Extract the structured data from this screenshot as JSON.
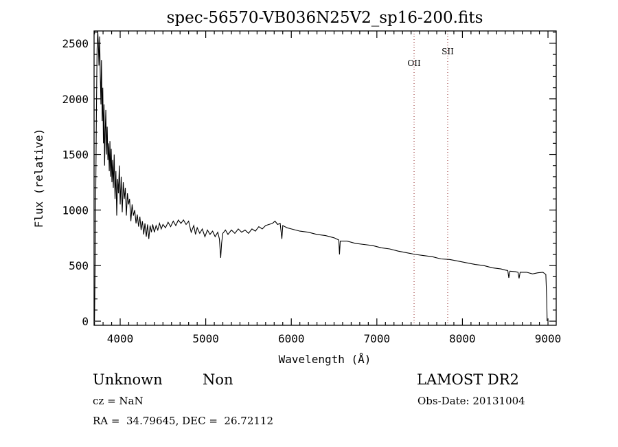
{
  "chart_data": {
    "type": "line",
    "title": "spec-56570-VB036N25V2_sp16-200.fits",
    "xlabel": "Wavelength (Å)",
    "ylabel": "Flux (relative)",
    "xlim": [
      3695,
      9096
    ],
    "ylim": [
      -37,
      2611
    ],
    "xticks": [
      4000,
      5000,
      6000,
      7000,
      8000,
      9000
    ],
    "yticks": [
      0,
      500,
      1000,
      1500,
      2000,
      2500
    ],
    "grid": false,
    "line_color": "#000000",
    "marker_color": "#8b1a1a",
    "lines": [
      {
        "name": "OII",
        "wavelength": 7435
      },
      {
        "name": "SII",
        "wavelength": 7828
      }
    ],
    "series": [
      {
        "name": "spectrum",
        "points": [
          [
            3700,
            0
          ],
          [
            3705,
            300
          ],
          [
            3712,
            900
          ],
          [
            3718,
            1500
          ],
          [
            3724,
            2000
          ],
          [
            3730,
            2450
          ],
          [
            3738,
            2611
          ],
          [
            3745,
            2500
          ],
          [
            3752,
            2300
          ],
          [
            3760,
            2560
          ],
          [
            3768,
            2200
          ],
          [
            3775,
            1950
          ],
          [
            3782,
            2350
          ],
          [
            3790,
            1800
          ],
          [
            3797,
            2100
          ],
          [
            3804,
            1600
          ],
          [
            3811,
            1950
          ],
          [
            3818,
            1400
          ],
          [
            3825,
            1700
          ],
          [
            3832,
            1900
          ],
          [
            3840,
            1500
          ],
          [
            3848,
            1750
          ],
          [
            3856,
            1450
          ],
          [
            3864,
            1600
          ],
          [
            3872,
            1350
          ],
          [
            3880,
            1620
          ],
          [
            3888,
            1300
          ],
          [
            3896,
            1550
          ],
          [
            3904,
            1250
          ],
          [
            3912,
            1450
          ],
          [
            3920,
            1200
          ],
          [
            3930,
            1500
          ],
          [
            3940,
            1100
          ],
          [
            3950,
            1350
          ],
          [
            3960,
            950
          ],
          [
            3970,
            1280
          ],
          [
            3980,
            1150
          ],
          [
            3990,
            1400
          ],
          [
            4000,
            1050
          ],
          [
            4012,
            1300
          ],
          [
            4024,
            980
          ],
          [
            4036,
            1250
          ],
          [
            4048,
            1100
          ],
          [
            4060,
            1200
          ],
          [
            4072,
            950
          ],
          [
            4085,
            1150
          ],
          [
            4098,
            1050
          ],
          [
            4110,
            1100
          ],
          [
            4125,
            900
          ],
          [
            4140,
            1050
          ],
          [
            4155,
            950
          ],
          [
            4170,
            1000
          ],
          [
            4185,
            880
          ],
          [
            4200,
            960
          ],
          [
            4215,
            850
          ],
          [
            4230,
            940
          ],
          [
            4245,
            820
          ],
          [
            4260,
            900
          ],
          [
            4275,
            780
          ],
          [
            4290,
            880
          ],
          [
            4305,
            760
          ],
          [
            4320,
            870
          ],
          [
            4335,
            740
          ],
          [
            4350,
            860
          ],
          [
            4365,
            800
          ],
          [
            4380,
            870
          ],
          [
            4400,
            800
          ],
          [
            4420,
            860
          ],
          [
            4440,
            820
          ],
          [
            4460,
            880
          ],
          [
            4480,
            830
          ],
          [
            4500,
            870
          ],
          [
            4530,
            840
          ],
          [
            4560,
            890
          ],
          [
            4590,
            850
          ],
          [
            4620,
            900
          ],
          [
            4650,
            860
          ],
          [
            4680,
            910
          ],
          [
            4710,
            880
          ],
          [
            4740,
            910
          ],
          [
            4770,
            870
          ],
          [
            4800,
            900
          ],
          [
            4830,
            800
          ],
          [
            4860,
            860
          ],
          [
            4880,
            780
          ],
          [
            4900,
            840
          ],
          [
            4930,
            790
          ],
          [
            4960,
            830
          ],
          [
            4990,
            760
          ],
          [
            5020,
            820
          ],
          [
            5050,
            780
          ],
          [
            5080,
            810
          ],
          [
            5110,
            760
          ],
          [
            5140,
            800
          ],
          [
            5160,
            740
          ],
          [
            5175,
            570
          ],
          [
            5185,
            700
          ],
          [
            5200,
            790
          ],
          [
            5230,
            820
          ],
          [
            5260,
            780
          ],
          [
            5300,
            820
          ],
          [
            5340,
            790
          ],
          [
            5380,
            830
          ],
          [
            5420,
            800
          ],
          [
            5460,
            820
          ],
          [
            5500,
            790
          ],
          [
            5540,
            830
          ],
          [
            5580,
            810
          ],
          [
            5620,
            850
          ],
          [
            5660,
            830
          ],
          [
            5700,
            860
          ],
          [
            5740,
            870
          ],
          [
            5780,
            880
          ],
          [
            5810,
            900
          ],
          [
            5840,
            870
          ],
          [
            5870,
            880
          ],
          [
            5890,
            740
          ],
          [
            5900,
            860
          ],
          [
            5950,
            840
          ],
          [
            6000,
            830
          ],
          [
            6100,
            810
          ],
          [
            6200,
            800
          ],
          [
            6300,
            780
          ],
          [
            6400,
            770
          ],
          [
            6500,
            750
          ],
          [
            6555,
            730
          ],
          [
            6563,
            600
          ],
          [
            6572,
            720
          ],
          [
            6650,
            720
          ],
          [
            6750,
            700
          ],
          [
            6850,
            690
          ],
          [
            6950,
            680
          ],
          [
            7050,
            660
          ],
          [
            7150,
            650
          ],
          [
            7250,
            630
          ],
          [
            7350,
            615
          ],
          [
            7450,
            600
          ],
          [
            7550,
            590
          ],
          [
            7650,
            580
          ],
          [
            7750,
            560
          ],
          [
            7850,
            555
          ],
          [
            7950,
            540
          ],
          [
            8050,
            525
          ],
          [
            8150,
            510
          ],
          [
            8250,
            500
          ],
          [
            8350,
            480
          ],
          [
            8450,
            470
          ],
          [
            8500,
            460
          ],
          [
            8530,
            455
          ],
          [
            8542,
            390
          ],
          [
            8555,
            450
          ],
          [
            8620,
            445
          ],
          [
            8650,
            440
          ],
          [
            8662,
            385
          ],
          [
            8675,
            440
          ],
          [
            8750,
            440
          ],
          [
            8820,
            425
          ],
          [
            8880,
            435
          ],
          [
            8940,
            440
          ],
          [
            8975,
            420
          ],
          [
            8985,
            200
          ],
          [
            8990,
            0
          ]
        ]
      }
    ]
  },
  "footer": {
    "object_class": "Unknown",
    "subclass": "Non",
    "survey": "LAMOST DR2",
    "cz": "cz = NaN",
    "obs_date": "Obs-Date: 20131004",
    "coords": "RA =  34.79645, DEC =  26.72112"
  }
}
